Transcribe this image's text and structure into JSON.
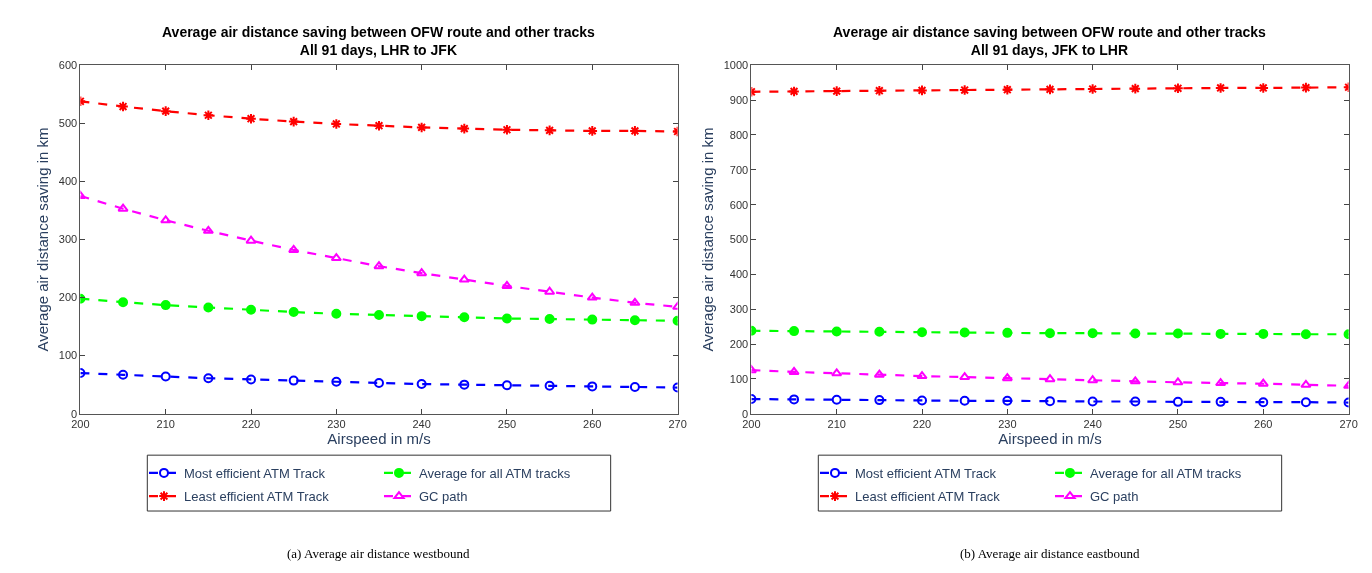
{
  "chart_data": [
    {
      "type": "line",
      "title": "Average air distance saving between OFW route and other tracks\nAll 91 days, LHR to JFK",
      "xlabel": "Airspeed in m/s",
      "ylabel": "Average air distance saving in km",
      "x": [
        200,
        205,
        210,
        215,
        220,
        225,
        230,
        235,
        240,
        245,
        250,
        255,
        260,
        265,
        270
      ],
      "xlim": [
        200,
        270
      ],
      "xticks": [
        200,
        210,
        220,
        230,
        240,
        250,
        260,
        270
      ],
      "ylim": [
        0,
        600
      ],
      "yticks": [
        0,
        100,
        200,
        300,
        400,
        500,
        600
      ],
      "legend": "bottom",
      "line_style": "dashed",
      "annotations": [
        "(a) Average air distance westbound"
      ],
      "series": [
        {
          "name": "Most efficient ATM Track",
          "color": "#0000ff",
          "marker": "circle",
          "values": [
            70,
            67,
            64,
            61,
            59,
            57,
            55,
            53,
            51,
            50,
            49,
            48,
            47,
            46,
            45
          ]
        },
        {
          "name": "Average for all ATM tracks",
          "color": "#00ff00",
          "marker": "circle",
          "values": [
            198,
            192,
            187,
            183,
            179,
            175,
            172,
            170,
            168,
            166,
            164,
            163,
            162,
            161,
            160
          ]
        },
        {
          "name": "Least efficient ATM Track",
          "color": "#ff0000",
          "marker": "cross",
          "values": [
            538,
            529,
            521,
            514,
            508,
            503,
            499,
            496,
            493,
            491,
            489,
            488,
            487,
            487,
            486
          ]
        },
        {
          "name": "GC path",
          "color": "#ff00ff",
          "marker": "triangle",
          "values": [
            375,
            353,
            333,
            315,
            298,
            282,
            268,
            254,
            242,
            231,
            220,
            210,
            200,
            191,
            184
          ]
        }
      ]
    },
    {
      "type": "line",
      "title": "Average air distance saving between OFW route and other tracks\nAll 91 days, JFK to LHR",
      "xlabel": "Airspeed in m/s",
      "ylabel": "Average air distance saving in km",
      "x": [
        200,
        205,
        210,
        215,
        220,
        225,
        230,
        235,
        240,
        245,
        250,
        255,
        260,
        265,
        270
      ],
      "xlim": [
        200,
        270
      ],
      "xticks": [
        200,
        210,
        220,
        230,
        240,
        250,
        260,
        270
      ],
      "ylim": [
        0,
        1000
      ],
      "yticks": [
        0,
        100,
        200,
        300,
        400,
        500,
        600,
        700,
        800,
        900,
        1000
      ],
      "legend": "bottom",
      "line_style": "dashed",
      "annotations": [
        "(b) Average air distance eastbound"
      ],
      "series": [
        {
          "name": "Most efficient ATM Track",
          "color": "#0000ff",
          "marker": "circle",
          "values": [
            42,
            41,
            40,
            39,
            38,
            37,
            37,
            36,
            35,
            35,
            34,
            34,
            33,
            33,
            32
          ]
        },
        {
          "name": "Average for all ATM tracks",
          "color": "#00ff00",
          "marker": "circle",
          "values": [
            238,
            237,
            236,
            235,
            234,
            233,
            232,
            231,
            231,
            230,
            230,
            229,
            229,
            228,
            228
          ]
        },
        {
          "name": "Least efficient ATM Track",
          "color": "#ff0000",
          "marker": "cross",
          "values": [
            924,
            925,
            926,
            927,
            928,
            929,
            930,
            931,
            932,
            933,
            934,
            935,
            935,
            936,
            937
          ]
        },
        {
          "name": "GC path",
          "color": "#ff00ff",
          "marker": "triangle",
          "values": [
            125,
            120,
            116,
            112,
            108,
            105,
            102,
            99,
            96,
            93,
            90,
            88,
            86,
            83,
            80
          ]
        }
      ]
    }
  ]
}
